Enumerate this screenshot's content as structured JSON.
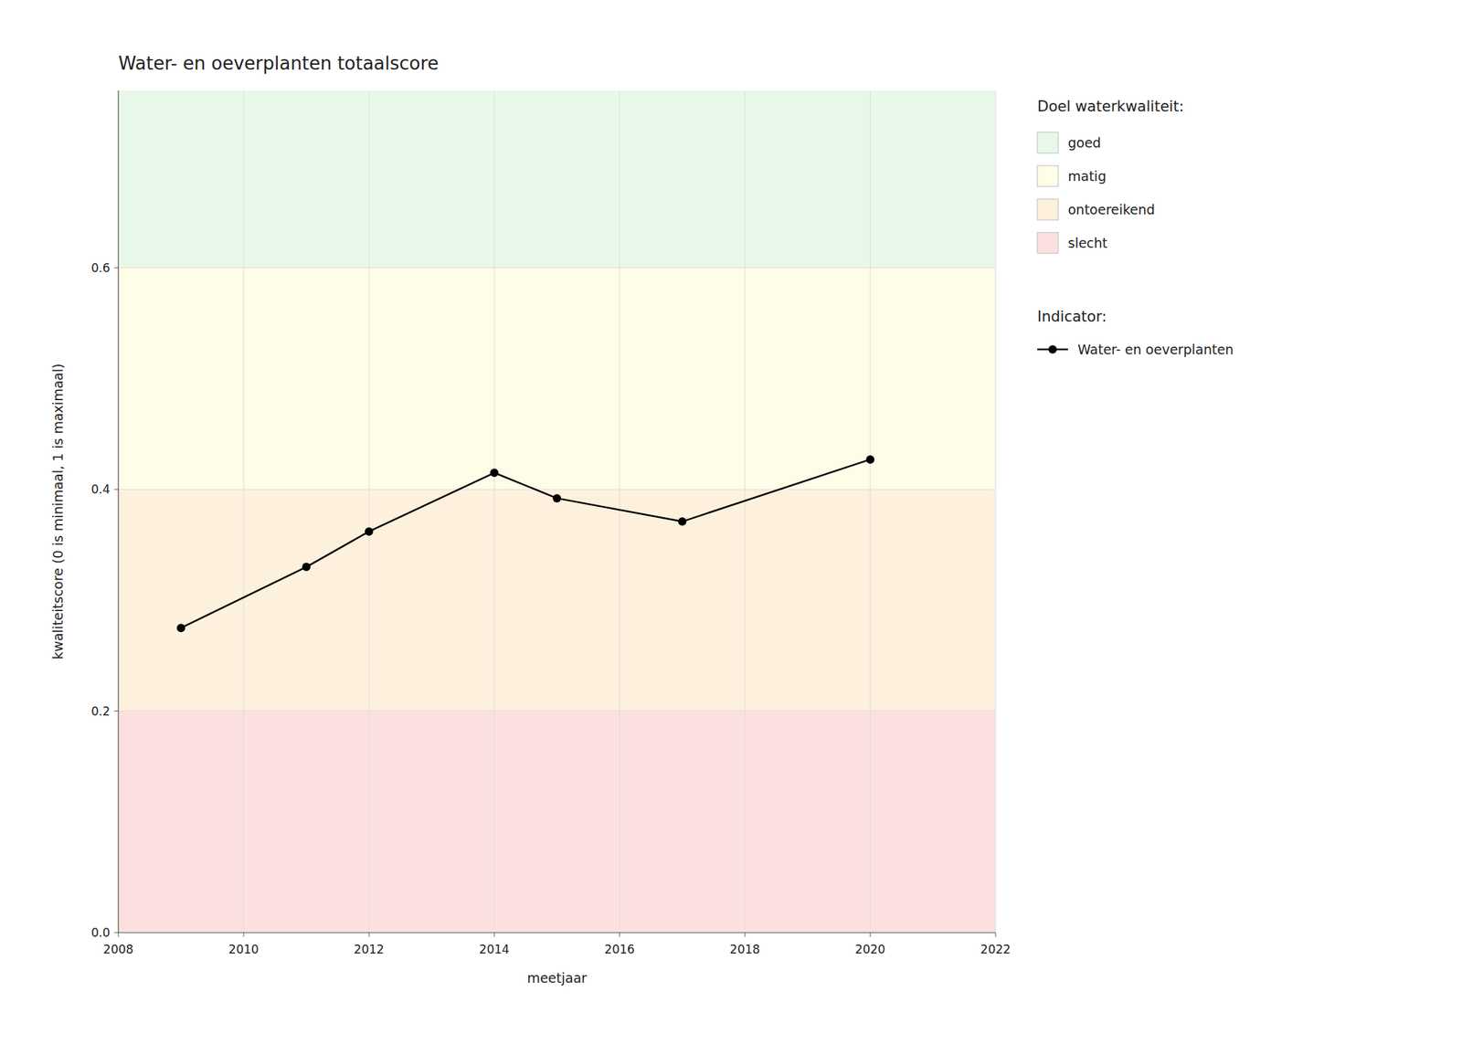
{
  "chart_data": {
    "type": "line",
    "title": "Water- en oeverplanten totaalscore",
    "xlabel": "meetjaar",
    "ylabel": "kwaliteitscore (0 is minimaal, 1 is maximaal)",
    "x": [
      2009,
      2011,
      2012,
      2014,
      2015,
      2017,
      2020
    ],
    "series": [
      {
        "name": "Water- en oeverplanten",
        "color": "#000000",
        "marker": "circle",
        "line_style": "solid",
        "values": [
          0.275,
          0.33,
          0.362,
          0.415,
          0.392,
          0.371,
          0.427
        ]
      }
    ],
    "xlim": [
      2008,
      2022
    ],
    "ylim": [
      0.0,
      0.76
    ],
    "xticks": [
      2008,
      2010,
      2012,
      2014,
      2016,
      2018,
      2020,
      2022
    ],
    "yticks": [
      {
        "value": 0.0,
        "label": "0.0"
      },
      0.2,
      0.4,
      0.6
    ],
    "grid": true,
    "legend": "right",
    "band_legend_title": "Doel waterkwaliteit:",
    "series_legend_title": "Indicator:",
    "bands": [
      {
        "name": "goed",
        "color": "#e8f8e8",
        "min": 0.6,
        "max": 0.76
      },
      {
        "name": "matig",
        "color": "#fdfde8",
        "min": 0.4,
        "max": 0.6
      },
      {
        "name": "ontoereikend",
        "color": "#fdf0dc",
        "min": 0.2,
        "max": 0.4
      },
      {
        "name": "slecht",
        "color": "#fce0e0",
        "min": 0.0,
        "max": 0.2
      }
    ]
  }
}
